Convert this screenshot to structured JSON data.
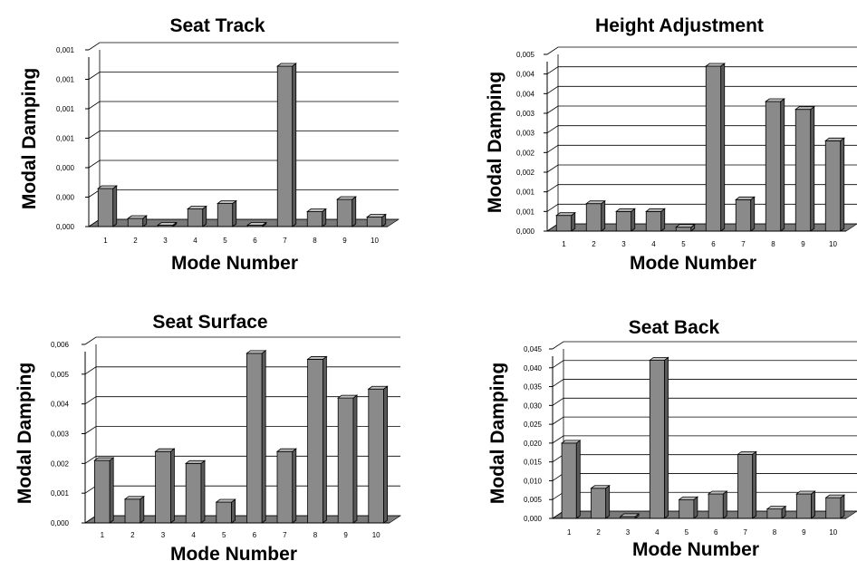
{
  "colors": {
    "bar_front": "#8a8a8a",
    "bar_side": "#5a5a5a",
    "bar_top": "#bdbdbd",
    "floor": "#7a7a7a",
    "grid": "#000000",
    "background": "#ffffff"
  },
  "chart_data": [
    {
      "type": "bar",
      "title": "Seat Track",
      "xlabel": "Mode Number",
      "ylabel": "Modal Damping",
      "categories": [
        "1",
        "2",
        "3",
        "4",
        "5",
        "6",
        "7",
        "8",
        "9",
        "10"
      ],
      "values": [
        0.00028,
        6e-05,
        1e-05,
        0.00013,
        0.00017,
        1e-05,
        0.00118,
        0.00011,
        0.0002,
        7e-05
      ],
      "ylim": [
        0,
        0.0013
      ],
      "yticks": [
        "0,000",
        "0,000",
        "0,000",
        "0,001",
        "0,001",
        "0,001",
        "0,001"
      ],
      "grid": true,
      "legend": "none"
    },
    {
      "type": "bar",
      "title": "Height Adjustment",
      "xlabel": "Mode Number",
      "ylabel": "Modal Damping",
      "categories": [
        "1",
        "2",
        "3",
        "4",
        "5",
        "6",
        "7",
        "8",
        "9",
        "10"
      ],
      "values": [
        0.0004,
        0.0007,
        0.0005,
        0.0005,
        0.0001,
        0.0042,
        0.0008,
        0.0033,
        0.0031,
        0.0023
      ],
      "ylim": [
        0,
        0.0045
      ],
      "yticks": [
        "0,000",
        "0,001",
        "0,001",
        "0,002",
        "0,002",
        "0,003",
        "0,003",
        "0,004",
        "0,004",
        "0,005"
      ],
      "grid": true,
      "legend": "none"
    },
    {
      "type": "bar",
      "title": "Seat Surface",
      "xlabel": "Mode Number",
      "ylabel": "Modal Damping",
      "categories": [
        "1",
        "2",
        "3",
        "4",
        "5",
        "6",
        "7",
        "8",
        "9",
        "10"
      ],
      "values": [
        0.0021,
        0.0008,
        0.0024,
        0.002,
        0.0007,
        0.0057,
        0.0024,
        0.0055,
        0.0042,
        0.0045
      ],
      "ylim": [
        0,
        0.006
      ],
      "yticks": [
        "0,000",
        "0,001",
        "0,002",
        "0,003",
        "0,004",
        "0,005",
        "0,006"
      ],
      "grid": true,
      "legend": "none"
    },
    {
      "type": "bar",
      "title": "Seat Back",
      "xlabel": "Mode Number",
      "ylabel": "Modal Damping",
      "categories": [
        "1",
        "2",
        "3",
        "4",
        "5",
        "6",
        "7",
        "8",
        "9",
        "10"
      ],
      "values": [
        0.02,
        0.008,
        0.0005,
        0.042,
        0.005,
        0.0065,
        0.017,
        0.0025,
        0.0065,
        0.0055
      ],
      "ylim": [
        0,
        0.045
      ],
      "yticks": [
        "0,000",
        "0,005",
        "0,010",
        "0,015",
        "0,020",
        "0,025",
        "0,030",
        "0,035",
        "0,040",
        "0,045"
      ],
      "grid": true,
      "legend": "none"
    }
  ]
}
